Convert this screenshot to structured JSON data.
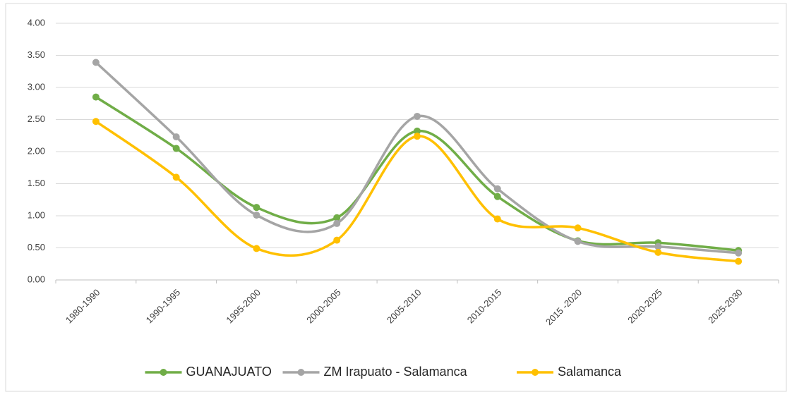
{
  "chart_data": {
    "type": "line",
    "categories": [
      "1980-1990",
      "1990-1995",
      "1995-2000",
      "2000-2005",
      "2005-2010",
      "2010-2015",
      "2015 -2020",
      "2020-2025",
      "2025-2030"
    ],
    "series": [
      {
        "name": "GUANAJUATO",
        "color": "#70ad47",
        "values": [
          2.85,
          2.05,
          1.13,
          0.97,
          2.32,
          1.3,
          0.61,
          0.58,
          0.46
        ]
      },
      {
        "name": "ZM Irapuato - Salamanca",
        "color": "#a5a5a5",
        "values": [
          3.39,
          2.23,
          1.01,
          0.88,
          2.55,
          1.42,
          0.6,
          0.52,
          0.42
        ]
      },
      {
        "name": "Salamanca",
        "color": "#ffc000",
        "values": [
          2.47,
          1.6,
          0.49,
          0.62,
          2.24,
          0.95,
          0.81,
          0.43,
          0.29
        ]
      }
    ],
    "ylim": [
      0,
      4
    ],
    "yticks": [
      {
        "value": 0,
        "label": "0.00"
      },
      {
        "value": 0.5,
        "label": "0.50"
      },
      {
        "value": 1,
        "label": "1.00"
      },
      {
        "value": 1.5,
        "label": "1.50"
      },
      {
        "value": 2,
        "label": "2.00"
      },
      {
        "value": 2.5,
        "label": "2.50"
      },
      {
        "value": 3,
        "label": "3.00"
      },
      {
        "value": 3.5,
        "label": "3.50"
      },
      {
        "value": 4,
        "label": "4.00"
      }
    ],
    "grid": true,
    "smooth": true,
    "legend": "bottom"
  }
}
